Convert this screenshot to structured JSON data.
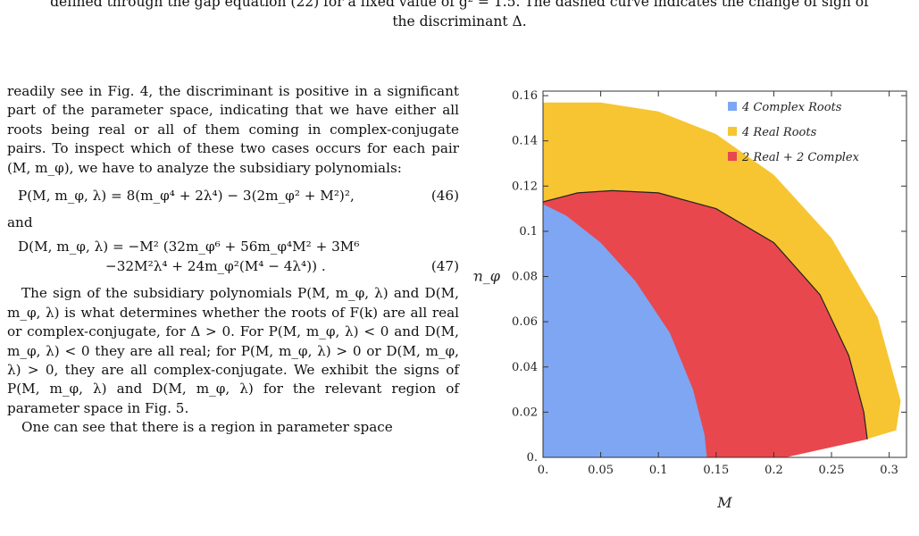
{
  "caption": {
    "line1": "defined through the gap equation (22) for a fixed value of g² = 1.5. The dashed curve indicates the change of sign of",
    "line2": "the discriminant Δ."
  },
  "text": {
    "p1": "readily see in Fig. 4, the discriminant is positive in a significant part of the parameter space, indicating that we have either all roots being real or all of them coming in complex-conjugate pairs. To inspect which of these two cases occurs for each pair (M, m_φ), we have to analyze the subsidiary polynomials:",
    "eq46": "P(M, m_φ, λ) = 8(m_φ⁴ + 2λ⁴) − 3(2m_φ² + M²)²,",
    "eq46_num": "(46)",
    "and": "and",
    "eq47a": "D(M, m_φ, λ) = −M² (32m_φ⁶ + 56m_φ⁴M² + 3M⁶",
    "eq47b": "−32M²λ⁴ + 24m_φ²(M⁴ − 4λ⁴)) .",
    "eq47_num": "(47)",
    "p2": "The sign of the subsidiary polynomials P(M, m_φ, λ) and D(M, m_φ, λ) is what determines whether the roots of F(k) are all real or complex-conjugate, for Δ > 0. For P(M, m_φ, λ) < 0 and D(M, m_φ, λ) < 0 they are all real; for P(M, m_φ, λ) > 0 or D(M, m_φ, λ) > 0, they are all complex-conjugate. We exhibit the signs of P(M, m_φ, λ) and D(M, m_φ, λ) for the relevant region of parameter space in Fig. 5.",
    "p3": "One can see that there is a region in parameter space"
  },
  "chart_data": {
    "type": "area",
    "xlabel": "M",
    "ylabel": "m_φ",
    "xlim": [
      0,
      0.315
    ],
    "ylim": [
      0,
      0.162
    ],
    "xticks": [
      "0.",
      "0.05",
      "0.1",
      "0.15",
      "0.2",
      "0.25",
      "0.3"
    ],
    "yticks": [
      "0.",
      "0.02",
      "0.04",
      "0.06",
      "0.08",
      "0.1",
      "0.12",
      "0.14",
      "0.16"
    ],
    "legend_position": "top-right",
    "series": [
      {
        "name": "4 Complex Roots",
        "color": "#7ea6f2",
        "boundary": [
          [
            0,
            0.112
          ],
          [
            0.02,
            0.107
          ],
          [
            0.05,
            0.095
          ],
          [
            0.08,
            0.078
          ],
          [
            0.11,
            0.055
          ],
          [
            0.13,
            0.03
          ],
          [
            0.14,
            0.01
          ],
          [
            0.142,
            0
          ]
        ]
      },
      {
        "name": "4 Real Roots",
        "color": "#f7c531",
        "boundary": [
          [
            0,
            0.157
          ],
          [
            0.05,
            0.157
          ],
          [
            0.1,
            0.153
          ],
          [
            0.15,
            0.143
          ],
          [
            0.2,
            0.125
          ],
          [
            0.25,
            0.097
          ],
          [
            0.29,
            0.062
          ],
          [
            0.31,
            0.025
          ],
          [
            0.306,
            0.012
          ],
          [
            0.28,
            0.008
          ],
          [
            0.21,
            0
          ]
        ]
      },
      {
        "name": "2 Real + 2 Complex",
        "color": "#e8474e",
        "boundary": [
          [
            0,
            0.113
          ],
          [
            0.03,
            0.117
          ],
          [
            0.06,
            0.118
          ],
          [
            0.1,
            0.117
          ],
          [
            0.15,
            0.11
          ],
          [
            0.2,
            0.095
          ],
          [
            0.24,
            0.072
          ],
          [
            0.265,
            0.045
          ],
          [
            0.278,
            0.02
          ],
          [
            0.281,
            0.008
          ],
          [
            0.21,
            0
          ]
        ]
      }
    ]
  }
}
